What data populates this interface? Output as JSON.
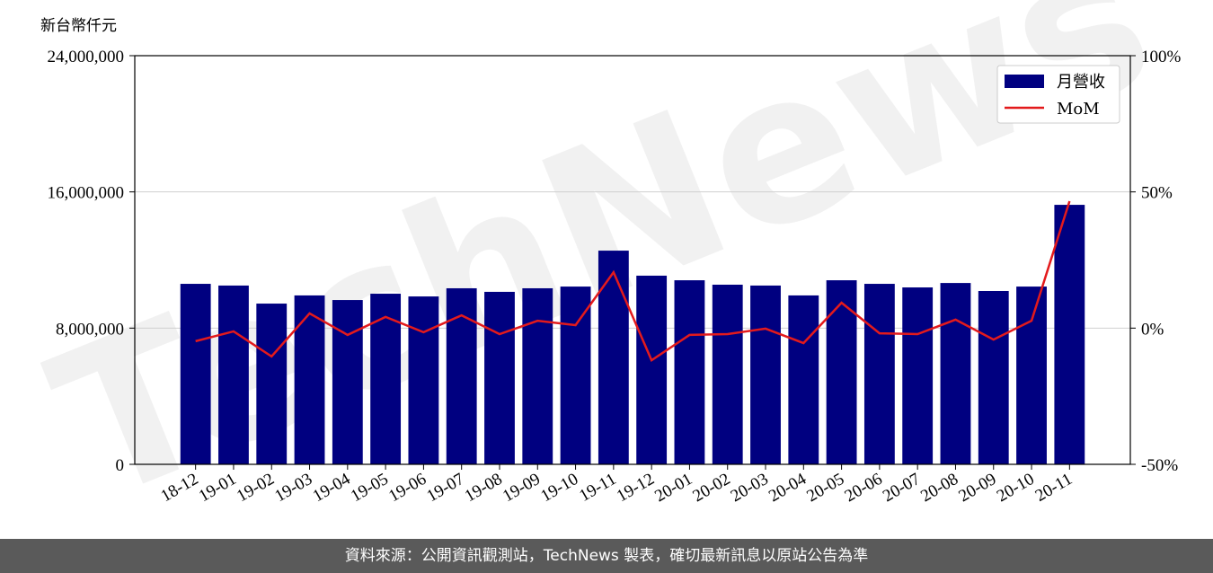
{
  "chart_data": {
    "type": "bar",
    "y_label": "新台幣仟元",
    "watermark": "TechNews",
    "source": "資料來源：公開資訊觀測站，TechNews 製表，確切最新訊息以原站公告為準",
    "categories": [
      "18-12",
      "19-01",
      "19-02",
      "19-03",
      "19-04",
      "19-05",
      "19-06",
      "19-07",
      "19-08",
      "19-09",
      "19-10",
      "19-11",
      "19-12",
      "20-01",
      "20-02",
      "20-03",
      "20-04",
      "20-05",
      "20-06",
      "20-07",
      "20-08",
      "20-09",
      "20-10",
      "20-11"
    ],
    "series": [
      {
        "name": "月營收",
        "type": "bar",
        "color": "#000080",
        "values": [
          10600000,
          10500000,
          9440000,
          9920000,
          9650000,
          10020000,
          9860000,
          10340000,
          10130000,
          10340000,
          10440000,
          12550000,
          11080000,
          10810000,
          10550000,
          10500000,
          9920000,
          10810000,
          10600000,
          10390000,
          10650000,
          10180000,
          10440000,
          15240000
        ]
      },
      {
        "name": "MoM",
        "type": "line",
        "color": "#e31a1c",
        "axis": "y2",
        "values": [
          -4.8,
          -1.2,
          -10.4,
          5.4,
          -2.5,
          4.1,
          -1.5,
          4.7,
          -2.2,
          2.7,
          1.1,
          20.5,
          -11.8,
          -2.5,
          -2.2,
          -0.2,
          -5.5,
          9.3,
          -1.9,
          -2.2,
          3.1,
          -4.2,
          2.7,
          46.6
        ]
      }
    ],
    "ylim": [
      0,
      24000000
    ],
    "yticks": [
      0,
      {
        "value": 8000000,
        "label": "8,000,000"
      },
      {
        "value": 16000000,
        "label": "16,000,000"
      },
      {
        "value": 24000000,
        "label": "24,000,000"
      }
    ],
    "y2lim": [
      -50,
      100
    ],
    "y2ticks": [
      {
        "value": -50,
        "label": "-50%"
      },
      {
        "value": 0,
        "label": "0%"
      },
      {
        "value": 50,
        "label": "50%"
      },
      {
        "value": 100,
        "label": "100%"
      }
    ],
    "grid": true,
    "legend": "upper right"
  }
}
